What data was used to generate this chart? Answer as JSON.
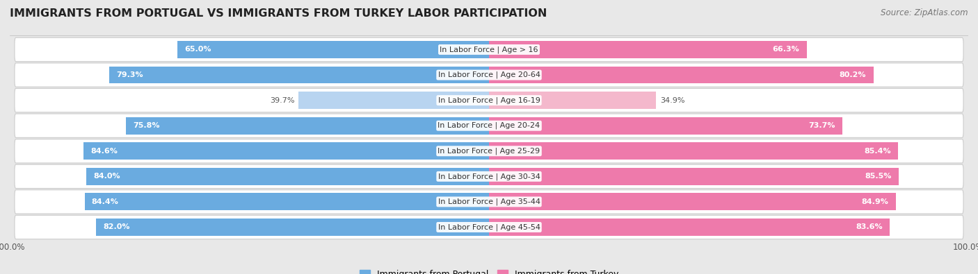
{
  "title": "IMMIGRANTS FROM PORTUGAL VS IMMIGRANTS FROM TURKEY LABOR PARTICIPATION",
  "source": "Source: ZipAtlas.com",
  "categories": [
    "In Labor Force | Age > 16",
    "In Labor Force | Age 20-64",
    "In Labor Force | Age 16-19",
    "In Labor Force | Age 20-24",
    "In Labor Force | Age 25-29",
    "In Labor Force | Age 30-34",
    "In Labor Force | Age 35-44",
    "In Labor Force | Age 45-54"
  ],
  "portugal_values": [
    65.0,
    79.3,
    39.7,
    75.8,
    84.6,
    84.0,
    84.4,
    82.0
  ],
  "turkey_values": [
    66.3,
    80.2,
    34.9,
    73.7,
    85.4,
    85.5,
    84.9,
    83.6
  ],
  "portugal_color": "#6aabe0",
  "portugal_light_color": "#b8d4f0",
  "turkey_color": "#ee7aab",
  "turkey_light_color": "#f4b8cc",
  "bar_height": 0.68,
  "background_color": "#e8e8e8",
  "title_fontsize": 11.5,
  "label_fontsize": 8.0,
  "value_fontsize": 8.0,
  "legend_fontsize": 9.0,
  "source_fontsize": 8.5
}
